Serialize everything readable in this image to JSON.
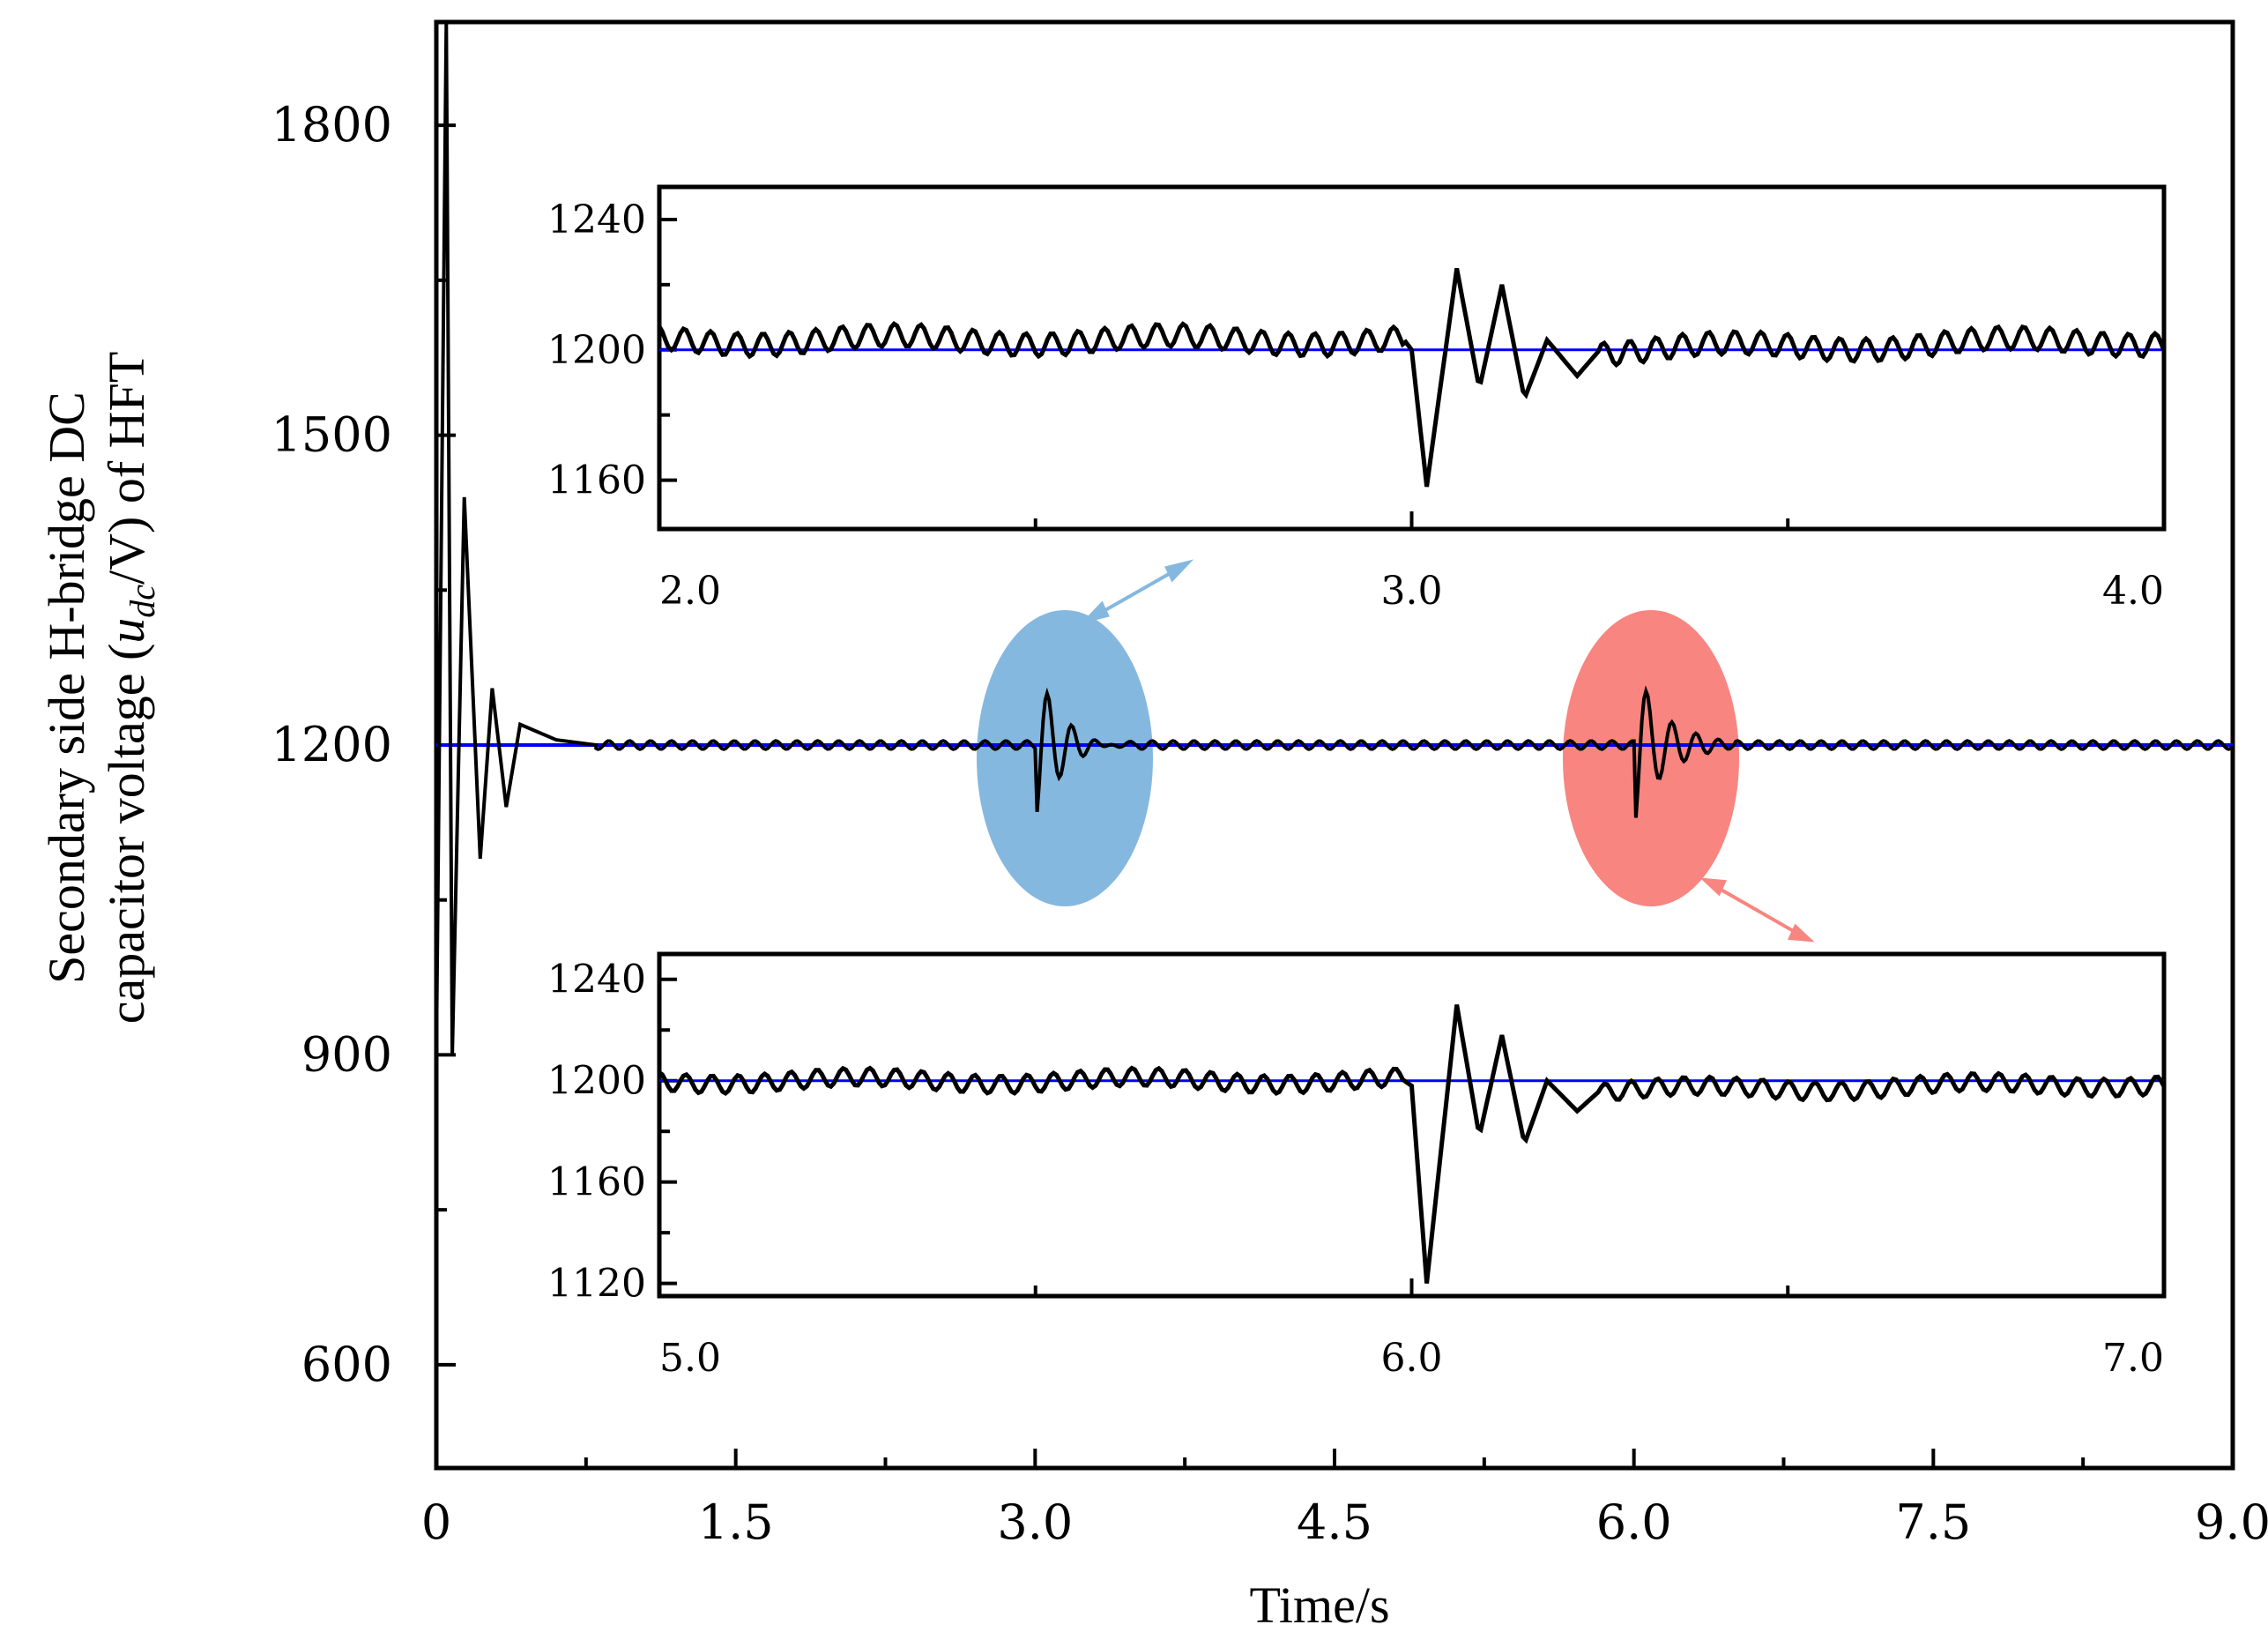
{
  "chart_data": {
    "type": "line",
    "xlabel": "Time/s",
    "ylabel": {
      "line1": "Secondary side  H-bridge DC",
      "line2_prefix": "capacitor voltage  (",
      "line2_var": "u",
      "line2_sub": "dc",
      "line2_suffix": "/V)  of HFT"
    },
    "xlim": [
      0,
      9.0
    ],
    "ylim": [
      500,
      1900
    ],
    "x_ticks": [
      "0",
      "1.5",
      "3.0",
      "4.5",
      "6.0",
      "7.5",
      "9.0"
    ],
    "y_ticks": [
      "600",
      "900",
      "1200",
      "1500",
      "1800"
    ],
    "reference_value": 1200,
    "reference_color": "#0000ff",
    "trace_color": "#000000",
    "startup": {
      "time_s": [
        0.0,
        0.05,
        0.08,
        0.14,
        0.22,
        0.28,
        0.35,
        0.42,
        0.6,
        0.8
      ],
      "voltage_v": [
        900,
        1900,
        900,
        1440,
        1090,
        1255,
        1140,
        1220,
        1205,
        1200
      ]
    },
    "disturbance_markers": [
      {
        "time_s": 3.0,
        "highlight_color": "#85b8df"
      },
      {
        "time_s": 6.0,
        "highlight_color": "#f88580"
      }
    ],
    "insets": [
      {
        "name": "zoom-1",
        "x_ticks": [
          "2.0",
          "3.0",
          "4.0"
        ],
        "y_ticks": [
          "1160",
          "1200",
          "1240"
        ],
        "xlim": [
          2.0,
          4.0
        ],
        "ylim": [
          1145,
          1250
        ],
        "response_time_s": [
          2.0,
          2.99,
          3.0,
          3.02,
          3.06,
          3.09,
          3.12,
          3.15,
          3.18,
          3.22,
          3.25,
          4.0
        ],
        "response_voltage_v": [
          1203,
          1203,
          1200,
          1158,
          1225,
          1188,
          1220,
          1185,
          1203,
          1192,
          1200,
          1203
        ]
      },
      {
        "name": "zoom-2",
        "x_ticks": [
          "5.0",
          "6.0",
          "7.0"
        ],
        "y_ticks": [
          "1120",
          "1160",
          "1200",
          "1240"
        ],
        "xlim": [
          5.0,
          7.0
        ],
        "ylim": [
          1115,
          1250
        ],
        "response_time_s": [
          5.0,
          5.99,
          6.0,
          6.02,
          6.06,
          6.09,
          6.12,
          6.15,
          6.18,
          6.22,
          6.25,
          7.0
        ],
        "response_voltage_v": [
          1200,
          1200,
          1198,
          1120,
          1230,
          1178,
          1218,
          1175,
          1200,
          1188,
          1196,
          1199
        ]
      }
    ]
  }
}
